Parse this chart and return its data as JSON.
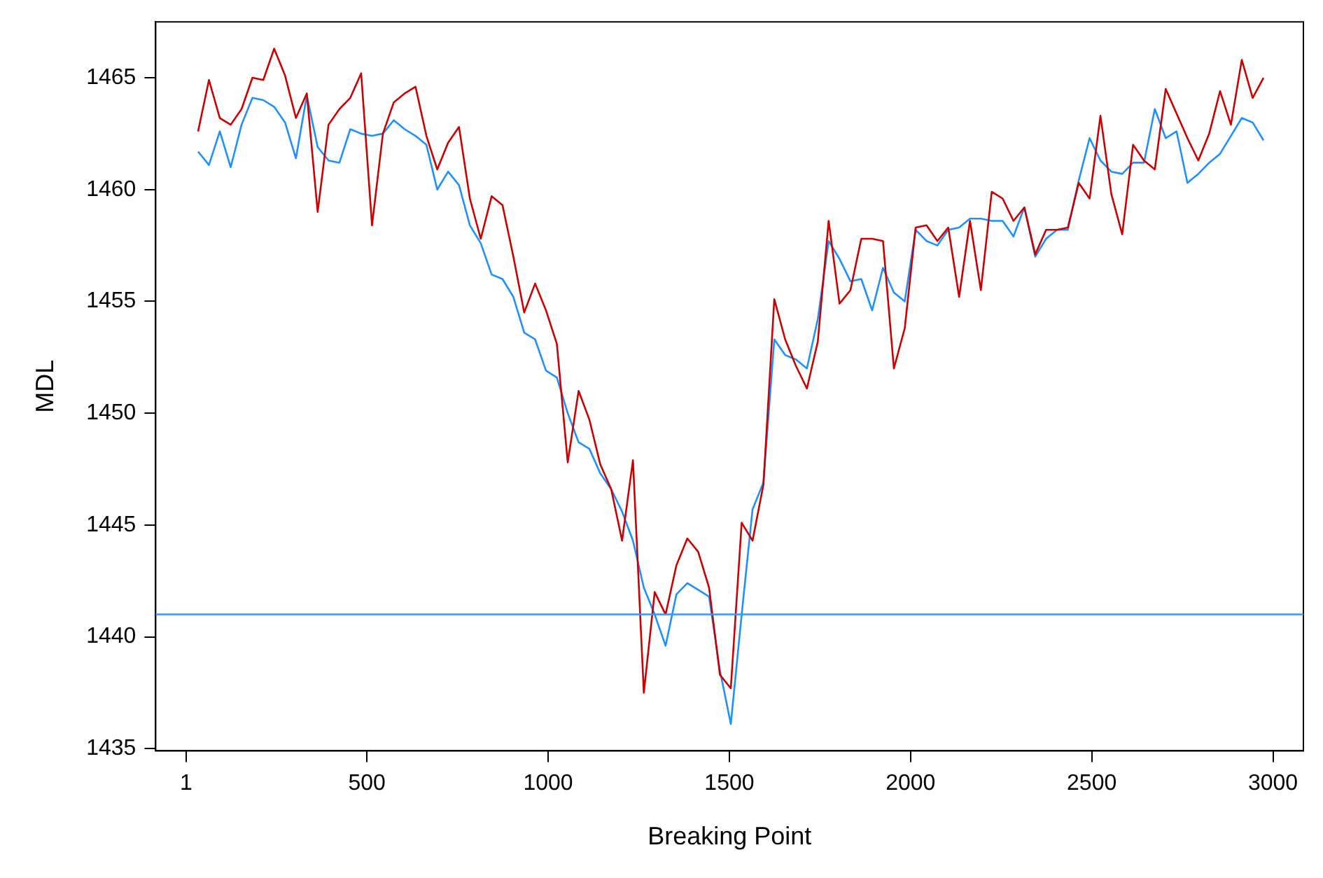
{
  "chart_data": {
    "type": "line",
    "xlabel": "Breaking Point",
    "ylabel": "MDL",
    "x": [
      34,
      64,
      94,
      124,
      154,
      184,
      214,
      244,
      274,
      304,
      334,
      364,
      394,
      424,
      454,
      484,
      514,
      544,
      574,
      604,
      634,
      664,
      694,
      724,
      754,
      784,
      814,
      844,
      874,
      904,
      934,
      964,
      994,
      1024,
      1054,
      1084,
      1114,
      1144,
      1174,
      1204,
      1234,
      1264,
      1294,
      1324,
      1354,
      1384,
      1414,
      1444,
      1474,
      1504,
      1534,
      1564,
      1594,
      1624,
      1654,
      1684,
      1714,
      1744,
      1774,
      1804,
      1834,
      1864,
      1894,
      1924,
      1954,
      1984,
      2014,
      2044,
      2074,
      2104,
      2134,
      2164,
      2194,
      2224,
      2254,
      2284,
      2314,
      2344,
      2374,
      2404,
      2434,
      2464,
      2494,
      2524,
      2554,
      2584,
      2614,
      2644,
      2674,
      2704,
      2734,
      2764,
      2794,
      2824,
      2854,
      2884,
      2914,
      2944,
      2974
    ],
    "series": [
      {
        "color": "#cc0000",
        "values": [
          1462.6,
          1464.9,
          1463.2,
          1462.9,
          1463.6,
          1465.0,
          1464.9,
          1466.3,
          1465.1,
          1463.2,
          1464.3,
          1459.0,
          1462.9,
          1463.6,
          1464.1,
          1465.2,
          1458.4,
          1462.5,
          1463.9,
          1464.3,
          1464.6,
          1462.4,
          1460.9,
          1462.1,
          1462.8,
          1459.6,
          1457.8,
          1459.7,
          1459.3,
          1457.0,
          1454.5,
          1455.8,
          1454.6,
          1453.1,
          1447.8,
          1451.0,
          1449.7,
          1447.7,
          1446.6,
          1444.3,
          1447.9,
          1437.5,
          1442.0,
          1441.0,
          1443.2,
          1444.4,
          1443.8,
          1442.2,
          1438.3,
          1437.7,
          1445.1,
          1444.3,
          1446.8,
          1455.1,
          1453.3,
          1452.1,
          1451.1,
          1453.2,
          1458.6,
          1454.9,
          1455.5,
          1457.8,
          1457.8,
          1457.7,
          1452.0,
          1453.8,
          1458.3,
          1458.4,
          1457.7,
          1458.3,
          1455.2,
          1458.6,
          1455.5,
          1459.9,
          1459.6,
          1458.6,
          1459.2,
          1457.1,
          1458.2,
          1458.2,
          1458.3,
          1460.3,
          1459.6,
          1463.3,
          1459.8,
          1458.0,
          1462.0,
          1461.3,
          1460.9,
          1464.5,
          1463.4,
          1462.3,
          1461.3,
          1462.5,
          1464.4,
          1462.9,
          1465.8,
          1464.1,
          1465.0
        ]
      },
      {
        "color": "#1e90ff",
        "values": [
          1461.7,
          1461.1,
          1462.6,
          1461.0,
          1462.9,
          1464.1,
          1464.0,
          1463.7,
          1463.0,
          1461.4,
          1464.2,
          1461.9,
          1461.3,
          1461.2,
          1462.7,
          1462.5,
          1462.4,
          1462.5,
          1463.1,
          1462.7,
          1462.4,
          1462.0,
          1460.0,
          1460.8,
          1460.2,
          1458.4,
          1457.6,
          1456.2,
          1456.0,
          1455.2,
          1453.6,
          1453.3,
          1451.9,
          1451.6,
          1450.0,
          1448.7,
          1448.4,
          1447.3,
          1446.6,
          1445.6,
          1444.3,
          1442.2,
          1441.0,
          1439.6,
          1441.9,
          1442.4,
          1442.1,
          1441.8,
          1438.5,
          1436.1,
          1441.0,
          1445.7,
          1446.9,
          1453.3,
          1452.6,
          1452.4,
          1452.0,
          1454.2,
          1457.7,
          1456.9,
          1455.9,
          1456.0,
          1454.6,
          1456.5,
          1455.4,
          1455.0,
          1458.2,
          1457.7,
          1457.5,
          1458.2,
          1458.3,
          1458.7,
          1458.7,
          1458.6,
          1458.6,
          1457.9,
          1459.2,
          1457.0,
          1457.8,
          1458.2,
          1458.2,
          1460.4,
          1462.3,
          1461.3,
          1460.8,
          1460.7,
          1461.2,
          1461.2,
          1463.6,
          1462.3,
          1462.6,
          1460.3,
          1460.7,
          1461.2,
          1461.6,
          1462.4,
          1463.2,
          1463.0,
          1462.2
        ]
      }
    ],
    "xlim": [
      -83,
      3084
    ],
    "xticks": [
      1,
      500,
      1000,
      1500,
      2000,
      2500,
      3000
    ],
    "ylim": [
      1434.9,
      1467.5
    ],
    "yticks": [
      1435,
      1440,
      1445,
      1450,
      1455,
      1460,
      1465
    ],
    "ref_lines": [
      {
        "axis": "y",
        "value": 1441.0,
        "color": "#3399ff"
      }
    ],
    "grid": false,
    "legend": false,
    "marker": "none",
    "line_style": "solid"
  }
}
